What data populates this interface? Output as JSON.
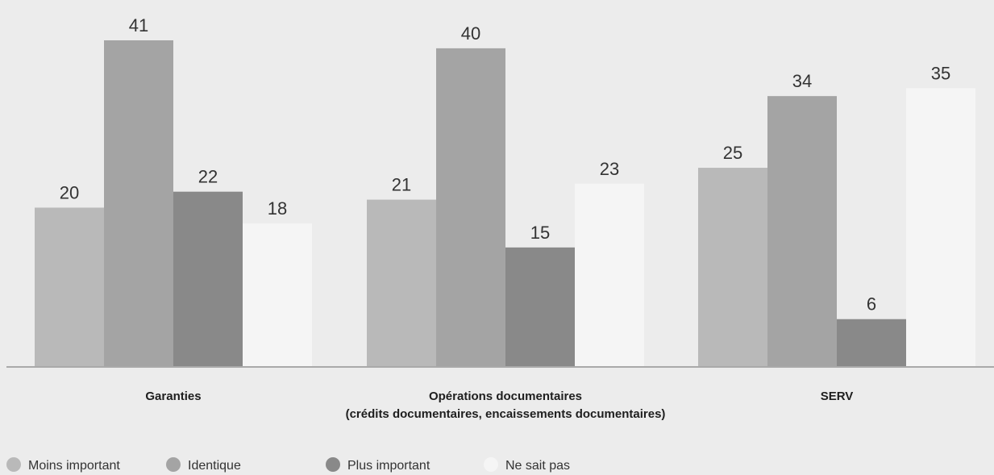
{
  "chart_data": {
    "type": "bar",
    "categories": [
      [
        "Garanties"
      ],
      [
        "Opérations documentaires",
        "(crédits documentaires, encaissements documentaires)"
      ],
      [
        "SERV"
      ]
    ],
    "series": [
      {
        "name": "Moins important",
        "color": "#b9b9b9",
        "values": [
          20,
          21,
          25
        ]
      },
      {
        "name": "Identique",
        "color": "#a4a4a4",
        "values": [
          41,
          40,
          34
        ]
      },
      {
        "name": "Plus important",
        "color": "#898989",
        "values": [
          22,
          15,
          6
        ]
      },
      {
        "name": "Ne sait pas",
        "color": "#f5f5f5",
        "values": [
          18,
          23,
          35
        ]
      }
    ],
    "ylim": [
      0,
      41
    ],
    "grid": false,
    "legend_position": "bottom-left",
    "baseline_color": "#a9a9a9",
    "label_color": "#333333"
  }
}
